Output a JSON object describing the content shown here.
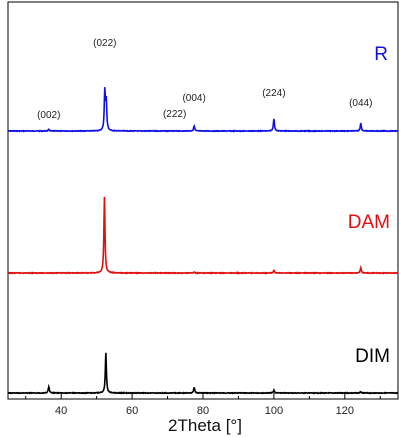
{
  "chart_data": {
    "type": "line",
    "xlabel": "2Theta [°]",
    "ylabel": "",
    "xlim": [
      25,
      135
    ],
    "x_ticks": [
      40,
      60,
      80,
      100,
      120
    ],
    "x_tick_labels": [
      "40",
      "60",
      "80",
      "100",
      "120"
    ],
    "grid": false,
    "peak_labels": [
      {
        "text": "(002)",
        "x": 36.5
      },
      {
        "text": "(022)",
        "x": 52.3
      },
      {
        "text": "(222)",
        "x": 72.0
      },
      {
        "text": "(004)",
        "x": 77.5
      },
      {
        "text": "(224)",
        "x": 100.0
      },
      {
        "text": "(044)",
        "x": 124.5
      }
    ],
    "series": [
      {
        "name": "R",
        "color": "#1010e0",
        "baseline": 1.0,
        "peaks": [
          {
            "x": 36.5,
            "height": 0.03
          },
          {
            "x": 52.3,
            "height": 0.85
          },
          {
            "x": 52.7,
            "height": 0.62
          },
          {
            "x": 77.5,
            "height": 0.11
          },
          {
            "x": 100.0,
            "height": 0.27
          },
          {
            "x": 124.5,
            "height": 0.17
          }
        ]
      },
      {
        "name": "DAM",
        "color": "#e01010",
        "baseline": 0.0,
        "peaks": [
          {
            "x": 52.2,
            "height": 1.65
          },
          {
            "x": 77.5,
            "height": 0.02
          },
          {
            "x": 100.0,
            "height": 0.06
          },
          {
            "x": 124.5,
            "height": 0.11
          }
        ]
      },
      {
        "name": "DIM",
        "color": "#000000",
        "baseline": -1.0,
        "peaks": [
          {
            "x": 36.5,
            "height": 0.14
          },
          {
            "x": 52.6,
            "height": 0.87
          },
          {
            "x": 77.5,
            "height": 0.13
          },
          {
            "x": 100.0,
            "height": 0.06
          },
          {
            "x": 124.5,
            "height": 0.03
          }
        ]
      }
    ]
  }
}
